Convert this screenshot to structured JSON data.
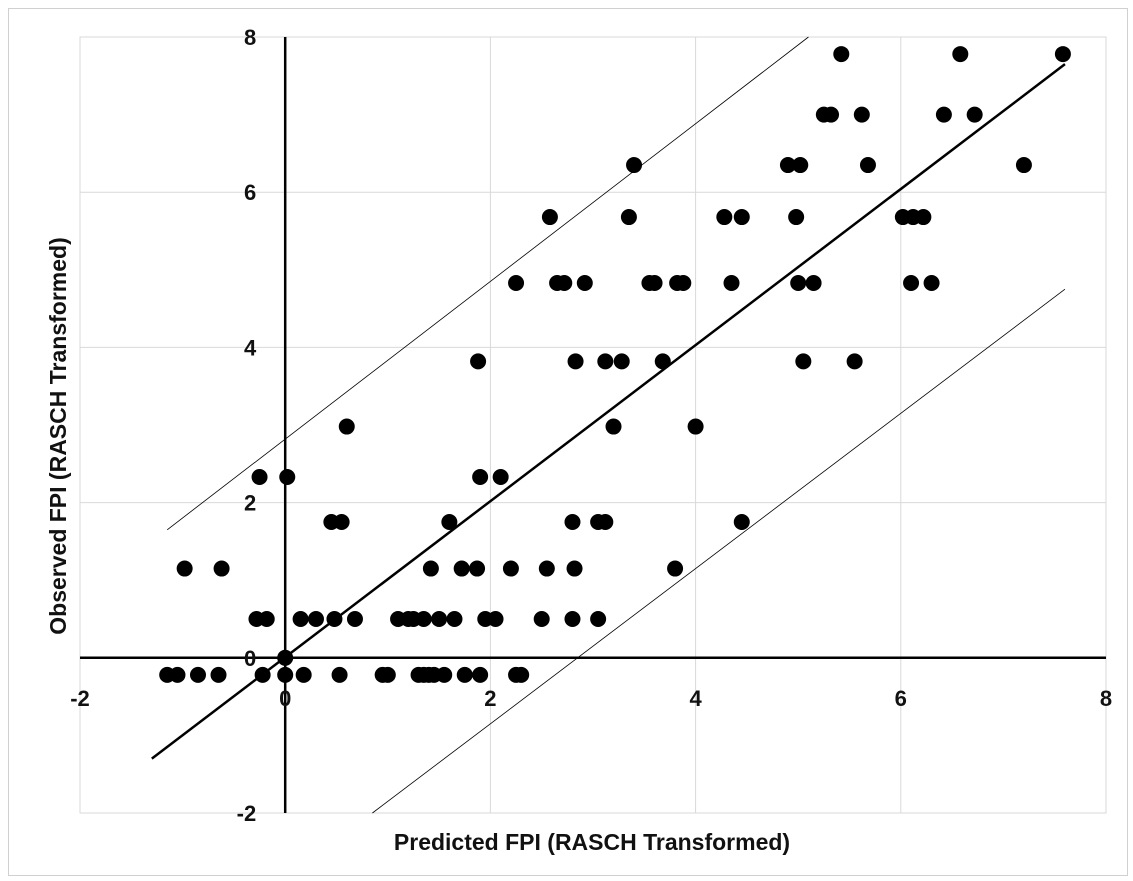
{
  "chart_data": {
    "type": "scatter",
    "title": "",
    "xlabel": "Predicted FPI (RASCH Transformed)",
    "ylabel": "Observed FPI (RASCH Transformed)",
    "xlim": [
      -2,
      8
    ],
    "ylim": [
      -2,
      8
    ],
    "x_ticks": [
      -2,
      0,
      2,
      4,
      6,
      8
    ],
    "y_ticks": [
      -2,
      0,
      2,
      4,
      6,
      8
    ],
    "grid": true,
    "colors": {
      "points": "#000000",
      "lines": "#000000",
      "grid": "#d9d9d9"
    },
    "fit_line": {
      "x": [
        -1.3,
        7.6
      ],
      "y": [
        -1.3,
        7.65
      ]
    },
    "upper_bound": {
      "x": [
        -1.15,
        5.1
      ],
      "y": [
        1.65,
        8.0
      ]
    },
    "lower_bound": {
      "x": [
        0.85,
        7.6
      ],
      "y": [
        -2.0,
        4.75
      ]
    },
    "points": [
      {
        "x": -1.15,
        "y": -0.22
      },
      {
        "x": -1.05,
        "y": -0.22
      },
      {
        "x": -0.85,
        "y": -0.22
      },
      {
        "x": -0.65,
        "y": -0.22
      },
      {
        "x": -0.22,
        "y": -0.22
      },
      {
        "x": 0.0,
        "y": -0.22
      },
      {
        "x": 0.18,
        "y": -0.22
      },
      {
        "x": 0.53,
        "y": -0.22
      },
      {
        "x": 0.95,
        "y": -0.22
      },
      {
        "x": 1.0,
        "y": -0.22
      },
      {
        "x": 1.3,
        "y": -0.22
      },
      {
        "x": 1.35,
        "y": -0.22
      },
      {
        "x": 1.4,
        "y": -0.22
      },
      {
        "x": 1.45,
        "y": -0.22
      },
      {
        "x": 1.55,
        "y": -0.22
      },
      {
        "x": 1.75,
        "y": -0.22
      },
      {
        "x": 1.9,
        "y": -0.22
      },
      {
        "x": 2.25,
        "y": -0.22
      },
      {
        "x": 2.3,
        "y": -0.22
      },
      {
        "x": 0.0,
        "y": 0.0
      },
      {
        "x": -0.28,
        "y": 0.5
      },
      {
        "x": -0.18,
        "y": 0.5
      },
      {
        "x": 0.15,
        "y": 0.5
      },
      {
        "x": 0.3,
        "y": 0.5
      },
      {
        "x": 0.48,
        "y": 0.5
      },
      {
        "x": 0.68,
        "y": 0.5
      },
      {
        "x": 1.1,
        "y": 0.5
      },
      {
        "x": 1.2,
        "y": 0.5
      },
      {
        "x": 1.25,
        "y": 0.5
      },
      {
        "x": 1.35,
        "y": 0.5
      },
      {
        "x": 1.5,
        "y": 0.5
      },
      {
        "x": 1.65,
        "y": 0.5
      },
      {
        "x": 1.95,
        "y": 0.5
      },
      {
        "x": 2.05,
        "y": 0.5
      },
      {
        "x": 2.5,
        "y": 0.5
      },
      {
        "x": 2.8,
        "y": 0.5
      },
      {
        "x": 3.05,
        "y": 0.5
      },
      {
        "x": -0.98,
        "y": 1.15
      },
      {
        "x": -0.62,
        "y": 1.15
      },
      {
        "x": 1.42,
        "y": 1.15
      },
      {
        "x": 1.72,
        "y": 1.15
      },
      {
        "x": 1.87,
        "y": 1.15
      },
      {
        "x": 2.2,
        "y": 1.15
      },
      {
        "x": 2.55,
        "y": 1.15
      },
      {
        "x": 2.82,
        "y": 1.15
      },
      {
        "x": 3.8,
        "y": 1.15
      },
      {
        "x": 0.45,
        "y": 1.75
      },
      {
        "x": 0.55,
        "y": 1.75
      },
      {
        "x": 1.6,
        "y": 1.75
      },
      {
        "x": 2.8,
        "y": 1.75
      },
      {
        "x": 3.05,
        "y": 1.75
      },
      {
        "x": 3.12,
        "y": 1.75
      },
      {
        "x": 4.45,
        "y": 1.75
      },
      {
        "x": -0.25,
        "y": 2.33
      },
      {
        "x": 0.02,
        "y": 2.33
      },
      {
        "x": 1.9,
        "y": 2.33
      },
      {
        "x": 2.1,
        "y": 2.33
      },
      {
        "x": 0.6,
        "y": 2.98
      },
      {
        "x": 3.2,
        "y": 2.98
      },
      {
        "x": 4.0,
        "y": 2.98
      },
      {
        "x": 1.88,
        "y": 3.82
      },
      {
        "x": 2.83,
        "y": 3.82
      },
      {
        "x": 3.12,
        "y": 3.82
      },
      {
        "x": 3.28,
        "y": 3.82
      },
      {
        "x": 3.68,
        "y": 3.82
      },
      {
        "x": 5.05,
        "y": 3.82
      },
      {
        "x": 5.55,
        "y": 3.82
      },
      {
        "x": 2.25,
        "y": 4.83
      },
      {
        "x": 2.65,
        "y": 4.83
      },
      {
        "x": 2.72,
        "y": 4.83
      },
      {
        "x": 2.92,
        "y": 4.83
      },
      {
        "x": 3.55,
        "y": 4.83
      },
      {
        "x": 3.6,
        "y": 4.83
      },
      {
        "x": 3.82,
        "y": 4.83
      },
      {
        "x": 3.88,
        "y": 4.83
      },
      {
        "x": 4.35,
        "y": 4.83
      },
      {
        "x": 5.0,
        "y": 4.83
      },
      {
        "x": 5.15,
        "y": 4.83
      },
      {
        "x": 6.1,
        "y": 4.83
      },
      {
        "x": 6.3,
        "y": 4.83
      },
      {
        "x": 2.58,
        "y": 5.68
      },
      {
        "x": 3.35,
        "y": 5.68
      },
      {
        "x": 4.28,
        "y": 5.68
      },
      {
        "x": 4.45,
        "y": 5.68
      },
      {
        "x": 4.98,
        "y": 5.68
      },
      {
        "x": 6.02,
        "y": 5.68
      },
      {
        "x": 6.12,
        "y": 5.68
      },
      {
        "x": 6.22,
        "y": 5.68
      },
      {
        "x": 3.4,
        "y": 6.35
      },
      {
        "x": 4.9,
        "y": 6.35
      },
      {
        "x": 5.02,
        "y": 6.35
      },
      {
        "x": 5.68,
        "y": 6.35
      },
      {
        "x": 7.2,
        "y": 6.35
      },
      {
        "x": 5.25,
        "y": 7.0
      },
      {
        "x": 5.32,
        "y": 7.0
      },
      {
        "x": 5.62,
        "y": 7.0
      },
      {
        "x": 6.42,
        "y": 7.0
      },
      {
        "x": 6.72,
        "y": 7.0
      },
      {
        "x": 5.42,
        "y": 7.78
      },
      {
        "x": 6.58,
        "y": 7.78
      },
      {
        "x": 7.58,
        "y": 7.78
      }
    ]
  }
}
